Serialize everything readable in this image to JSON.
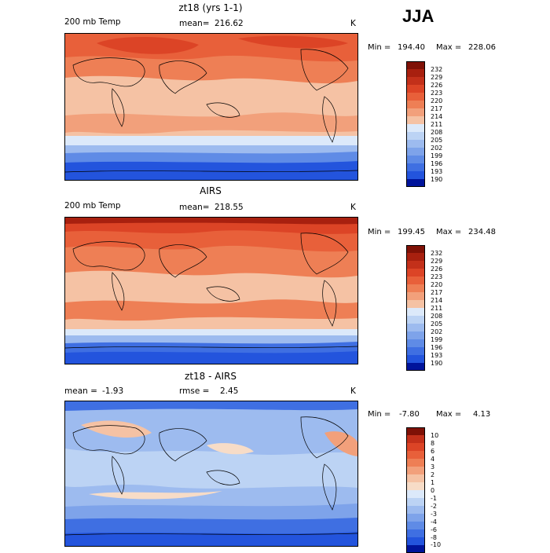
{
  "season": "JJA",
  "colors": {
    "warm": [
      "#f7dcc7",
      "#f5c2a4",
      "#f2a07b",
      "#ee7f55",
      "#e8603a",
      "#dc4426",
      "#c3301a",
      "#a8200f",
      "#7f1106"
    ],
    "cool": [
      "#dce9fa",
      "#bcd3f4",
      "#9dbbef",
      "#7ea3ea",
      "#5f8be6",
      "#3f6fe2",
      "#2354dd",
      "#0a37c7",
      "#00149b"
    ]
  },
  "panels": [
    {
      "title": "zt18 (yrs 1-1)",
      "left_label": "200 mb Temp",
      "stat_label": "mean=",
      "stat_value": "216.62",
      "right_label": "K",
      "min_label": "Min =",
      "min_value": "194.40",
      "max_label": "Max =",
      "max_value": "228.06",
      "colorbar_levels": [
        "232",
        "229",
        "226",
        "223",
        "220",
        "217",
        "214",
        "211",
        "208",
        "205",
        "202",
        "199",
        "196",
        "193",
        "190"
      ]
    },
    {
      "title": "AIRS",
      "left_label": "200 mb Temp",
      "stat_label": "mean=",
      "stat_value": "218.55",
      "right_label": "K",
      "min_label": "Min =",
      "min_value": "199.45",
      "max_label": "Max =",
      "max_value": "234.48",
      "colorbar_levels": [
        "232",
        "229",
        "226",
        "223",
        "220",
        "217",
        "214",
        "211",
        "208",
        "205",
        "202",
        "199",
        "196",
        "193",
        "190"
      ]
    },
    {
      "title": "zt18 - AIRS",
      "left_label": "mean =",
      "left_value": "-1.93",
      "stat_label": "rmse =",
      "stat_value": "2.45",
      "right_label": "K",
      "min_label": "Min =",
      "min_value": "-7.80",
      "max_label": "Max =",
      "max_value": "4.13",
      "colorbar_levels": [
        "10",
        "8",
        "6",
        "4",
        "3",
        "2",
        "1",
        "0",
        "-1",
        "-2",
        "-3",
        "-4",
        "-6",
        "-8",
        "-10"
      ]
    }
  ]
}
